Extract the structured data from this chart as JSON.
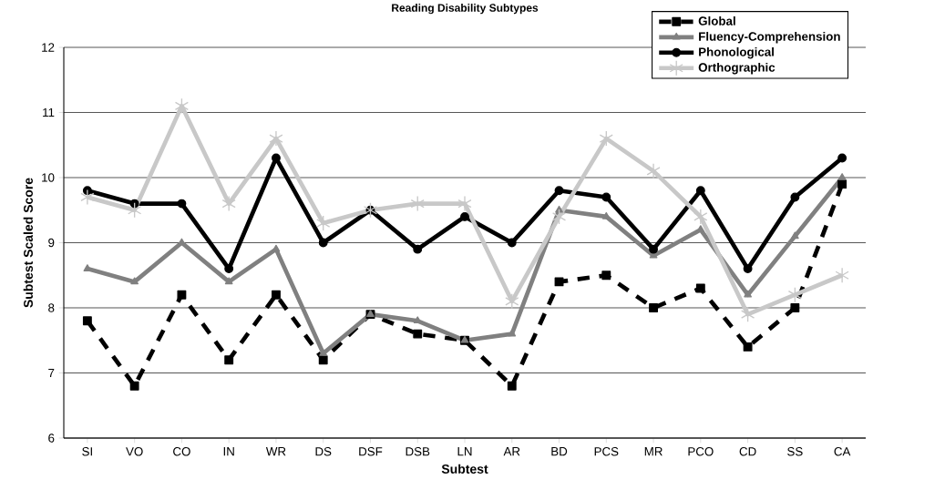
{
  "chart_data": {
    "type": "line",
    "title": "Reading Disability Subtypes",
    "xlabel": "Subtest",
    "ylabel": "Subtest Scaled Score",
    "categories": [
      "SI",
      "VO",
      "CO",
      "IN",
      "WR",
      "DS",
      "DSF",
      "DSB",
      "LN",
      "AR",
      "BD",
      "PCS",
      "MR",
      "PCO",
      "CD",
      "SS",
      "CA"
    ],
    "ylim": [
      6,
      12
    ],
    "yticks": [
      6,
      7,
      8,
      9,
      10,
      11,
      12
    ],
    "grid": "y",
    "legend": "top right",
    "series": [
      {
        "name": "Global",
        "color": "#000000",
        "marker": "square",
        "line_style": "dashed",
        "values": [
          7.8,
          6.8,
          8.2,
          7.2,
          8.2,
          7.2,
          7.9,
          7.6,
          7.5,
          6.8,
          8.4,
          8.5,
          8.0,
          8.3,
          7.4,
          8.0,
          9.9
        ]
      },
      {
        "name": "Fluency-Comprehension",
        "color": "#808080",
        "marker": "triangle",
        "line_style": "solid",
        "values": [
          8.6,
          8.4,
          9.0,
          8.4,
          8.9,
          7.3,
          7.9,
          7.8,
          7.5,
          7.6,
          9.5,
          9.4,
          8.8,
          9.2,
          8.2,
          9.1,
          10.0
        ]
      },
      {
        "name": "Phonological",
        "color": "#000000",
        "marker": "circle",
        "line_style": "solid",
        "values": [
          9.8,
          9.6,
          9.6,
          8.6,
          10.3,
          9.0,
          9.5,
          8.9,
          9.4,
          9.0,
          9.8,
          9.7,
          8.9,
          9.8,
          8.6,
          9.7,
          10.3
        ]
      },
      {
        "name": "Orthographic",
        "color": "#c8c8c8",
        "marker": "cross",
        "line_style": "solid",
        "values": [
          9.7,
          9.5,
          11.1,
          9.6,
          10.6,
          9.3,
          9.5,
          9.6,
          9.6,
          8.1,
          9.4,
          10.6,
          10.1,
          9.4,
          7.9,
          8.2,
          8.5
        ]
      }
    ]
  }
}
